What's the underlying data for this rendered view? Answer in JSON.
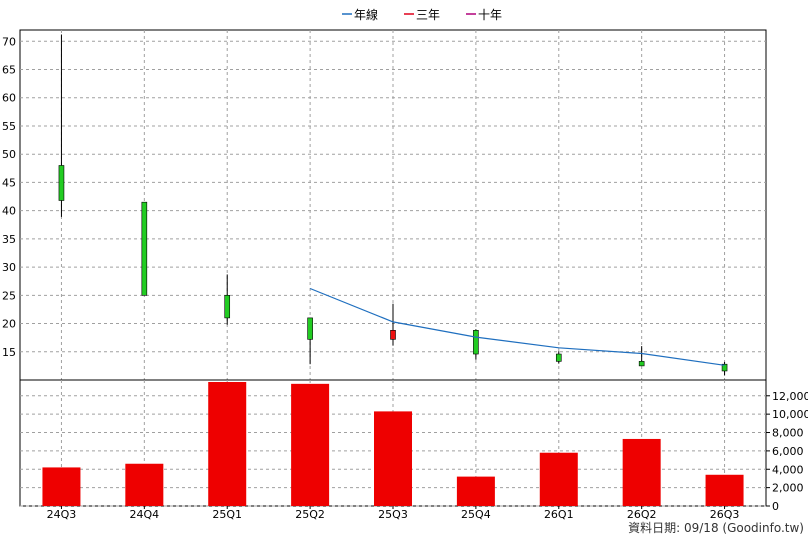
{
  "chart_data": {
    "type": "candlestick",
    "legend": {
      "position": "top-center",
      "items": [
        {
          "name": "年線",
          "color": "#1f6fbf"
        },
        {
          "name": "三年",
          "color": "#e0001a"
        },
        {
          "name": "十年",
          "color": "#b0007a"
        }
      ]
    },
    "categories": [
      "24Q3",
      "24Q4",
      "25Q1",
      "25Q2",
      "25Q3",
      "25Q4",
      "26Q1",
      "26Q2",
      "26Q3"
    ],
    "price_axis": {
      "range": [
        10,
        72
      ],
      "ticks": [
        15,
        20,
        25,
        30,
        35,
        40,
        45,
        50,
        55,
        60,
        65,
        70
      ]
    },
    "candles": [
      {
        "open": 41.8,
        "high": 71.2,
        "low": 38.9,
        "close": 48.0,
        "color": "#22cc22"
      },
      {
        "open": 41.5,
        "high": 41.5,
        "low": 25.0,
        "close": 25.0,
        "color": "#22cc22"
      },
      {
        "open": 25.0,
        "high": 28.7,
        "low": 19.8,
        "close": 21.0,
        "color": "#22cc22"
      },
      {
        "open": 21.0,
        "high": 21.0,
        "low": 12.8,
        "close": 17.2,
        "color": "#22cc22"
      },
      {
        "open": 17.2,
        "high": 23.5,
        "low": 16.1,
        "close": 18.8,
        "color": "#ee1111"
      },
      {
        "open": 18.8,
        "high": 19.0,
        "low": 13.6,
        "close": 14.6,
        "color": "#22cc22"
      },
      {
        "open": 14.6,
        "high": 15.1,
        "low": 12.9,
        "close": 13.3,
        "color": "#22cc22"
      },
      {
        "open": 13.3,
        "high": 16.0,
        "low": 12.5,
        "close": 12.5,
        "color": "#22cc22"
      },
      {
        "open": 12.8,
        "high": 13.2,
        "low": 10.8,
        "close": 11.6,
        "color": "#22cc22"
      }
    ],
    "annual_line": {
      "name": "年線",
      "start_index": 3,
      "values": [
        26.2,
        20.3,
        17.6,
        15.7,
        14.7,
        12.6
      ]
    },
    "volume_axis": {
      "range": [
        0,
        13500
      ],
      "ticks": [
        0,
        2000,
        4000,
        6000,
        8000,
        10000,
        12000
      ],
      "tick_labels": [
        "0",
        "2,000",
        "4,000",
        "6,000",
        "8,000",
        "10,000",
        "12,000"
      ]
    },
    "volume": [
      4200,
      4600,
      13500,
      13300,
      10300,
      3200,
      5800,
      7300,
      3400
    ],
    "volume_color": "#ee0000",
    "grid": true,
    "footer": "資料日期: 09/18  (Goodinfo.tw)"
  }
}
